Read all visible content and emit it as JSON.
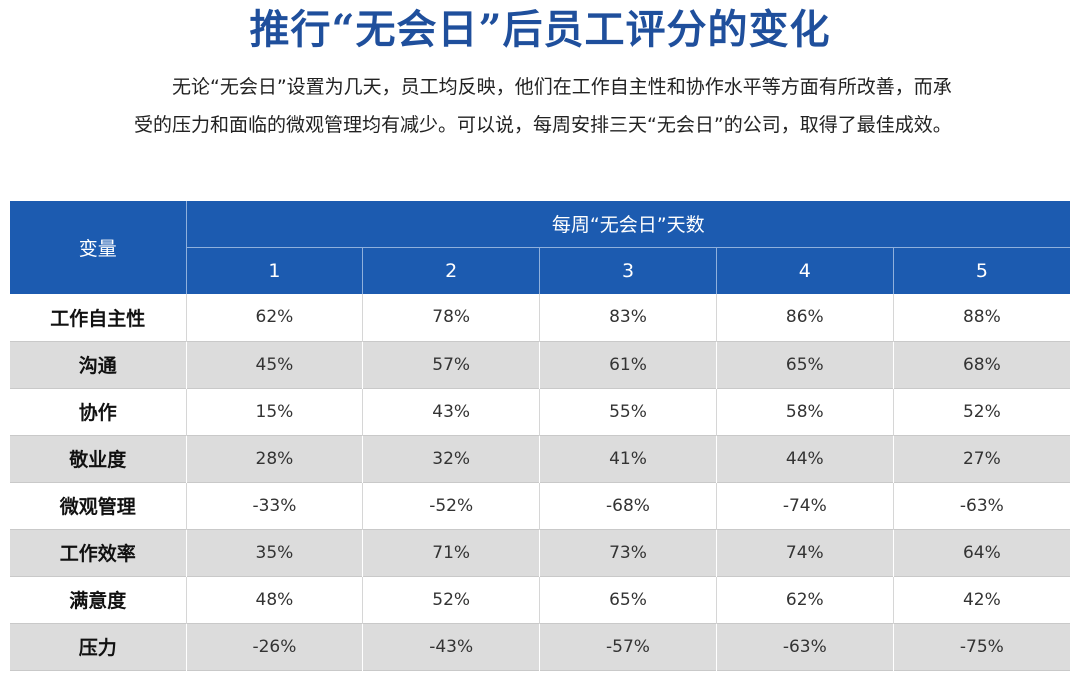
{
  "title": "推行“无会日”后员工评分的变化",
  "intro": "无论“无会日”设置为几天，员工均反映，他们在工作自主性和协作水平等方面有所改善，而承受的压力和面临的微观管理均有减少。可以说，每周安排三天“无会日”的公司，取得了最佳成效。",
  "table": {
    "variable_header": "变量",
    "group_header": "每周“无会日”天数",
    "columns": [
      "1",
      "2",
      "3",
      "4",
      "5"
    ],
    "rows": [
      {
        "label": "工作自主性",
        "values": [
          "62%",
          "78%",
          "83%",
          "86%",
          "88%"
        ]
      },
      {
        "label": "沟通",
        "values": [
          "45%",
          "57%",
          "61%",
          "65%",
          "68%"
        ]
      },
      {
        "label": "协作",
        "values": [
          "15%",
          "43%",
          "55%",
          "58%",
          "52%"
        ]
      },
      {
        "label": "敬业度",
        "values": [
          "28%",
          "32%",
          "41%",
          "44%",
          "27%"
        ]
      },
      {
        "label": "微观管理",
        "values": [
          "-33%",
          "-52%",
          "-68%",
          "-74%",
          "-63%"
        ]
      },
      {
        "label": "工作效率",
        "values": [
          "35%",
          "71%",
          "73%",
          "74%",
          "64%"
        ]
      },
      {
        "label": "满意度",
        "values": [
          "48%",
          "52%",
          "65%",
          "62%",
          "42%"
        ]
      },
      {
        "label": "压力",
        "values": [
          "-26%",
          "-43%",
          "-57%",
          "-63%",
          "-75%"
        ]
      }
    ]
  },
  "colors": {
    "title": "#1f4f9c",
    "header_bg": "#1c5bb0",
    "header_text": "#ffffff",
    "stripe": "#dcdcdc"
  }
}
